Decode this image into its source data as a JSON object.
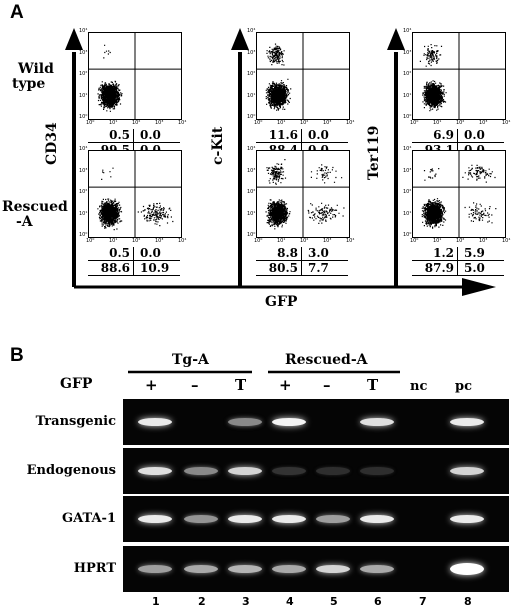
{
  "panel_a": {
    "letter": "A",
    "rows": [
      {
        "label_line1": "Wild",
        "label_line2": "type"
      },
      {
        "label_line1": "Rescued",
        "label_line2": "-A"
      }
    ],
    "markers": [
      "CD34",
      "c-Kit",
      "Ter119"
    ],
    "x_axis_label": "GFP",
    "tick_labels": [
      "10⁰",
      "10¹",
      "10²",
      "10³",
      "10⁴"
    ],
    "plots": [
      {
        "row": 0,
        "col": 0,
        "ul": "0.5",
        "ur": "0.0",
        "ll": "99.5",
        "lr": "0.0"
      },
      {
        "row": 0,
        "col": 1,
        "ul": "11.6",
        "ur": "0.0",
        "ll": "88.4",
        "lr": "0.0"
      },
      {
        "row": 0,
        "col": 2,
        "ul": "6.9",
        "ur": "0.0",
        "ll": "93.1",
        "lr": "0.0"
      },
      {
        "row": 1,
        "col": 0,
        "ul": "0.5",
        "ur": "0.0",
        "ll": "88.6",
        "lr": "10.9"
      },
      {
        "row": 1,
        "col": 1,
        "ul": "8.8",
        "ur": "3.0",
        "ll": "80.5",
        "lr": "7.7"
      },
      {
        "row": 1,
        "col": 2,
        "ul": "1.2",
        "ur": "5.9",
        "ll": "87.9",
        "lr": "5.0"
      }
    ]
  },
  "panel_b": {
    "letter": "B",
    "groups": [
      "Tg-A",
      "Rescued-A"
    ],
    "gfp_label": "GFP",
    "lane_headers": [
      "+",
      "–",
      "T",
      "+",
      "–",
      "T",
      "nc",
      "pc"
    ],
    "lane_numbers": [
      "1",
      "2",
      "3",
      "4",
      "5",
      "6",
      "7",
      "8"
    ],
    "gel_rows": [
      {
        "label": "Transgenic",
        "bands": [
          0.9,
          0,
          0.45,
          0.95,
          0,
          0.85,
          0,
          0.9
        ]
      },
      {
        "label": "Endogenous",
        "bands": [
          0.85,
          0.45,
          0.8,
          0.05,
          0.03,
          0.03,
          0,
          0.8
        ]
      },
      {
        "label": "GATA-1",
        "bands": [
          0.9,
          0.5,
          0.9,
          0.9,
          0.55,
          0.9,
          0,
          0.9
        ]
      },
      {
        "label": "HPRT",
        "bands": [
          0.55,
          0.6,
          0.65,
          0.6,
          0.8,
          0.6,
          0,
          1.0
        ]
      }
    ]
  }
}
